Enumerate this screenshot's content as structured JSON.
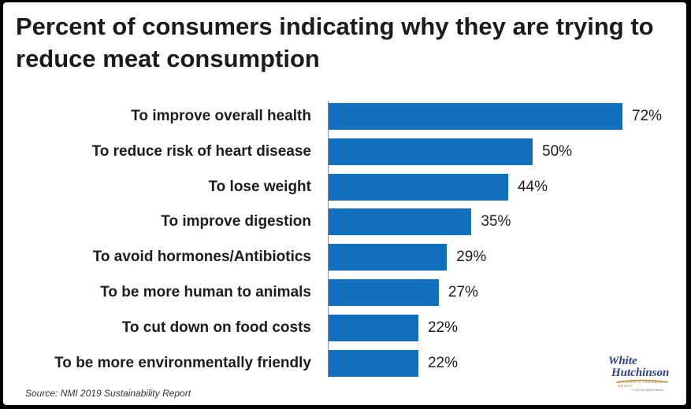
{
  "chart_data": {
    "type": "bar",
    "orientation": "horizontal",
    "title": "Percent of consumers indicating why they are trying to reduce meat consumption",
    "categories": [
      "To improve overall health",
      "To reduce risk of heart disease",
      "To lose weight",
      "To improve digestion",
      "To avoid hormones/Antibiotics",
      "To be more human to animals",
      "To cut down on food costs",
      "To be more environmentally friendly"
    ],
    "values": [
      72,
      50,
      44,
      35,
      29,
      27,
      22,
      22
    ],
    "value_labels": [
      "72%",
      "50%",
      "44%",
      "35%",
      "29%",
      "27%",
      "22%",
      "22%"
    ],
    "xlabel": "",
    "ylabel": "",
    "grid": false,
    "bar_color": "#1170bd"
  },
  "source": "Source: NMI 2019 Sustainability Report",
  "logo": {
    "line1": "White",
    "line2": "Hutchinson",
    "tagline": "LEISURE & LEARNING GROUP",
    "copyright": "© 2019 All rights reserved"
  }
}
